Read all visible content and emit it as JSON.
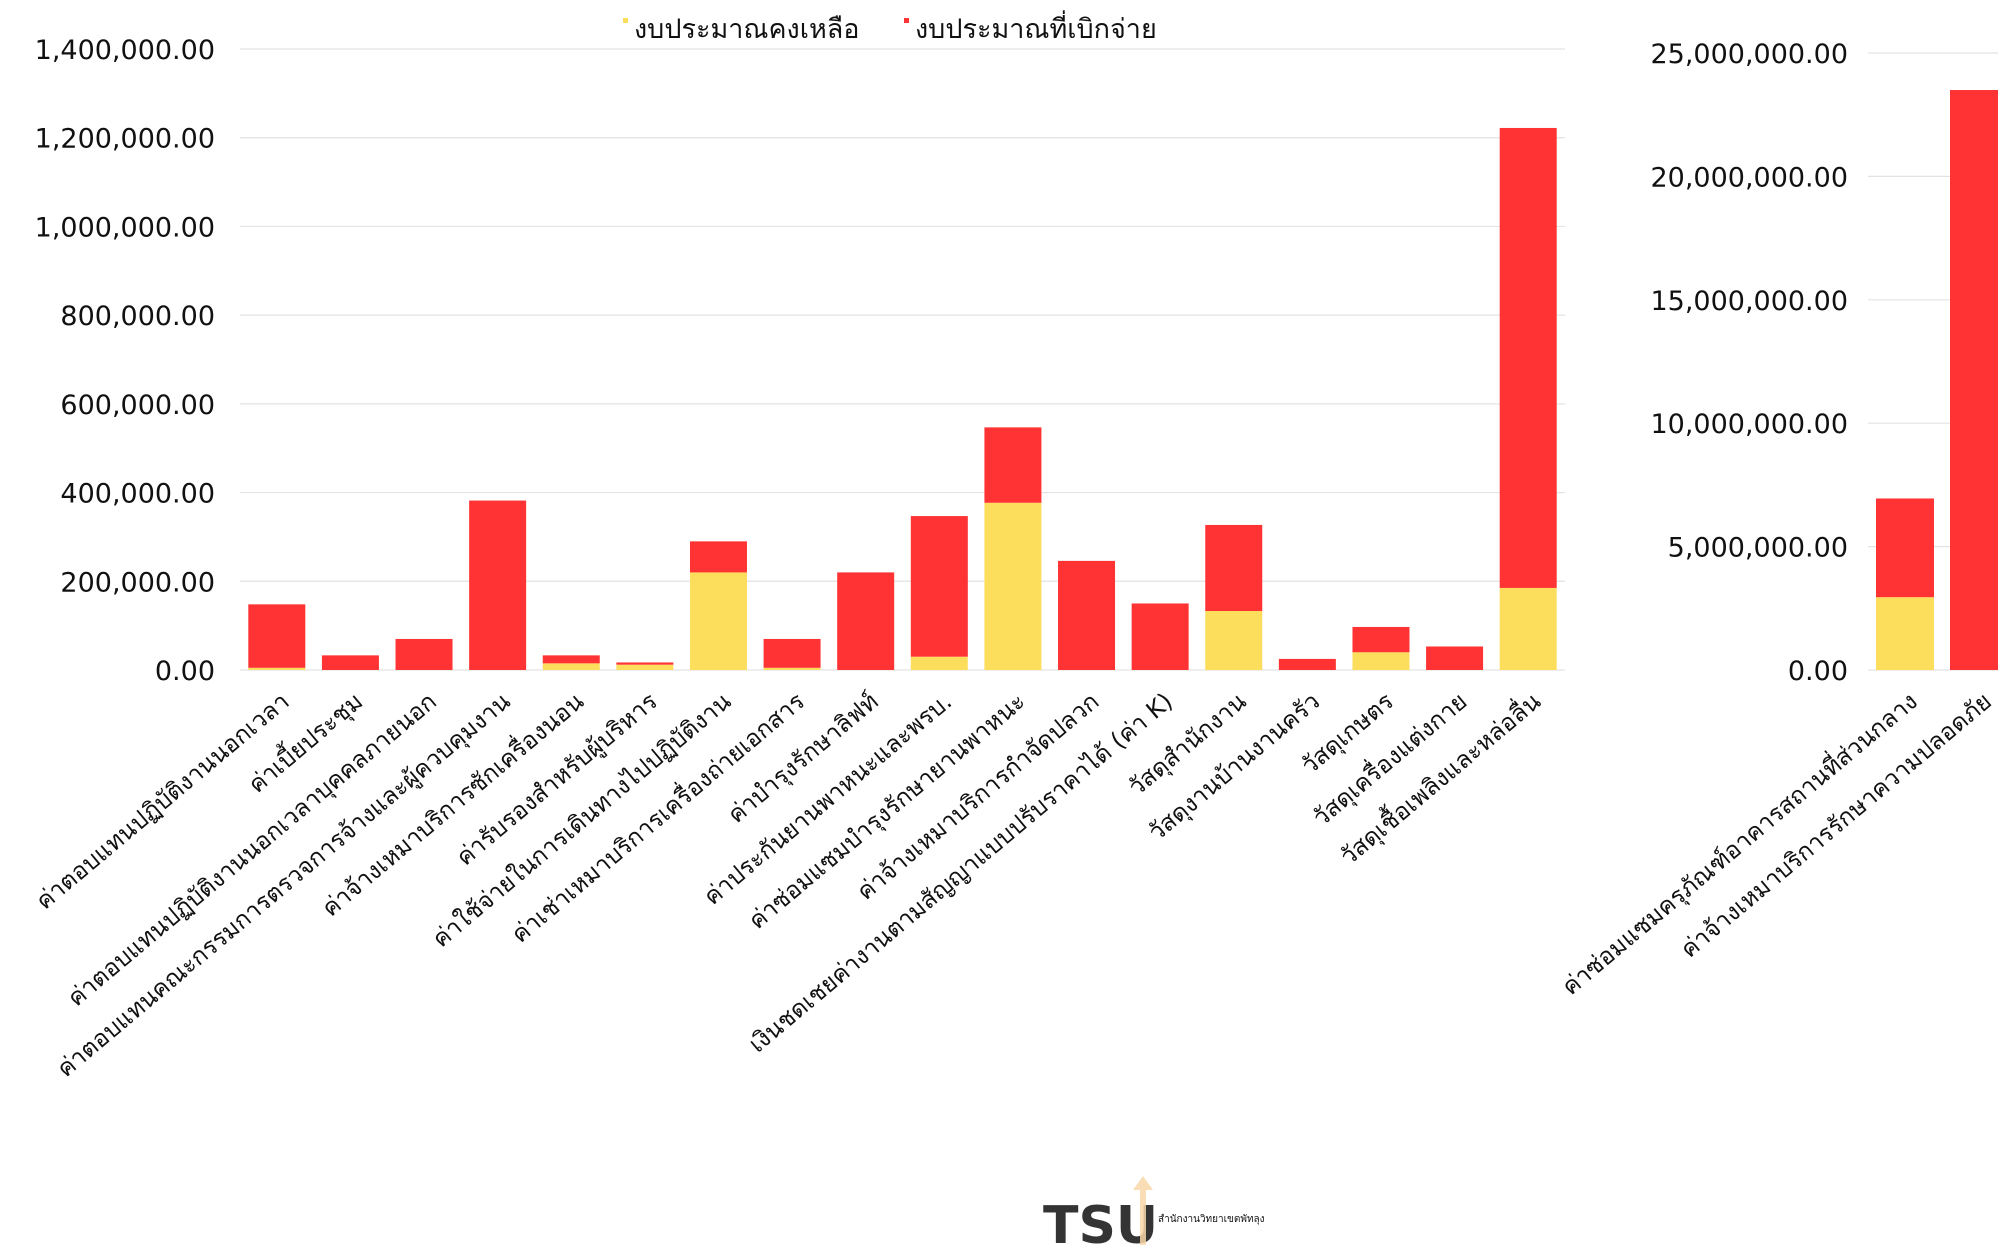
{
  "colors": {
    "remaining": "#FDDD5C",
    "spent": "#FF3333",
    "grid": "#e3e3e3",
    "text": "#111111"
  },
  "legend": {
    "placement": "top-center"
  },
  "watermark": {
    "text": "TSU",
    "subtext": "สำนักงานวิทยาเขตพัทลุง"
  },
  "chart_data": [
    {
      "type": "bar",
      "stacked": true,
      "ylim": [
        0,
        1400000
      ],
      "yticks": [
        "0.00",
        "200,000.00",
        "400,000.00",
        "600,000.00",
        "800,000.00",
        "1,000,000.00",
        "1,200,000.00",
        "1,400,000.00"
      ],
      "ytick_values": [
        0,
        200000,
        400000,
        600000,
        800000,
        1000000,
        1200000,
        1400000
      ],
      "grid": true,
      "categories": [
        "ค่าตอบแทนปฏิบัติงานนอกเวลา",
        "ค่าเบี้ยประชุม",
        "ค่าตอบแทนปฏิบัติงานนอกเวลาบุคคลภายนอก",
        "ค่าตอบแทนคณะกรรมการตรวจการจ้างและผู้ควบคุมงาน",
        "ค่าจ้างเหมาบริการซักเครื่องนอน",
        "ค่ารับรองสำหรับผู้บริหาร",
        "ค่าใช้จ่ายในการเดินทางไปปฏิบัติงาน",
        "ค่าเช่าเหมาบริการเครื่องถ่ายเอกสาร",
        "ค่าบำรุงรักษาลิฟท์",
        "ค่าประกันยานพาหนะและพรบ.",
        "ค่าซ่อมแซมบำรุงรักษายานพาหนะ",
        "ค่าจ้างเหมาบริการกำจัดปลวก",
        "เงินชดเชยค่างานตามสัญญาแบบปรับราคาได้ (ค่า K)",
        "วัสดุสำนักงาน",
        "วัสดุงานบ้านงานครัว",
        "วัสดุเกษตร",
        "วัสดุเครื่องแต่งกาย",
        "วัสดุเชื้อเพลิงและหล่อลื่น"
      ],
      "series": [
        {
          "name": "งบประมาณคงเหลือ",
          "values": [
            5000,
            0,
            0,
            0,
            15000,
            12000,
            220000,
            5000,
            0,
            30000,
            377000,
            0,
            0,
            133000,
            0,
            40000,
            0,
            185000
          ]
        },
        {
          "name": "งบประมาณที่เบิกจ่าย",
          "values": [
            143000,
            33000,
            70000,
            382000,
            18000,
            5000,
            70000,
            65000,
            220000,
            317000,
            170000,
            246000,
            150000,
            194000,
            25000,
            57000,
            53000,
            1037000
          ]
        }
      ]
    },
    {
      "type": "bar",
      "stacked": true,
      "ylim": [
        0,
        25000000
      ],
      "yticks": [
        "0.00",
        "5,000,000.00",
        "10,000,000.00",
        "15,000,000.00",
        "20,000,000.00",
        "25,000,000.00"
      ],
      "ytick_values": [
        0,
        5000000,
        10000000,
        15000000,
        20000000,
        25000000
      ],
      "grid": true,
      "categories": [
        "ค่าซ่อมแซมครุภัณฑ์อาคารสถานที่ส่วนกลาง",
        "ค่าจ้างเหมาบริการรักษาความปลอดภัย"
      ],
      "series": [
        {
          "name": "งบประมาณคงเหลือ",
          "values": [
            2950000,
            0
          ]
        },
        {
          "name": "งบประมาณที่เบิกจ่าย",
          "values": [
            4000000,
            23500000
          ]
        }
      ]
    }
  ]
}
